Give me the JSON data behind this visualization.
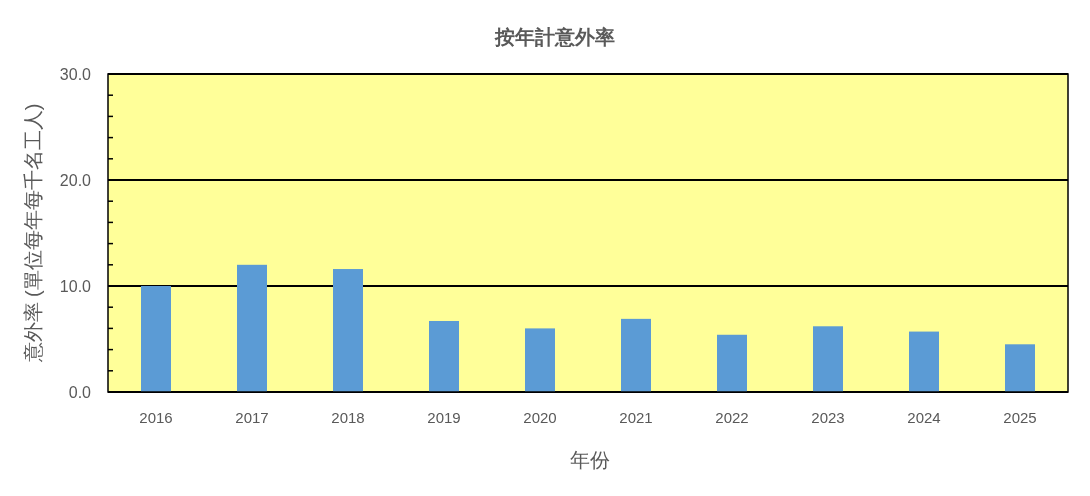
{
  "chart_data": {
    "type": "bar",
    "title": "按年計意外率",
    "xlabel": "年份",
    "ylabel": "意外率 (單位每年每千名工人)",
    "categories": [
      "2016",
      "2017",
      "2018",
      "2019",
      "2020",
      "2021",
      "2022",
      "2023",
      "2024",
      "2025"
    ],
    "values": [
      10.0,
      12.0,
      11.6,
      6.7,
      6.0,
      6.9,
      5.4,
      6.2,
      5.7,
      4.5
    ],
    "color": "#5b9bd5",
    "ylim": [
      0,
      30
    ],
    "yticks": [
      {
        "value": 0,
        "label": "0.0"
      },
      {
        "value": 2,
        "label": null
      },
      {
        "value": 4,
        "label": null
      },
      {
        "value": 6,
        "label": null
      },
      {
        "value": 8,
        "label": null
      },
      {
        "value": 10,
        "label": "10.0"
      },
      {
        "value": 12,
        "label": null
      },
      {
        "value": 14,
        "label": null
      },
      {
        "value": 16,
        "label": null
      },
      {
        "value": 18,
        "label": null
      },
      {
        "value": 20,
        "label": "20.0"
      },
      {
        "value": 22,
        "label": null
      },
      {
        "value": 24,
        "label": null
      },
      {
        "value": 26,
        "label": null
      },
      {
        "value": 28,
        "label": null
      },
      {
        "value": 30,
        "label": "30.0"
      }
    ],
    "grid": "y"
  }
}
